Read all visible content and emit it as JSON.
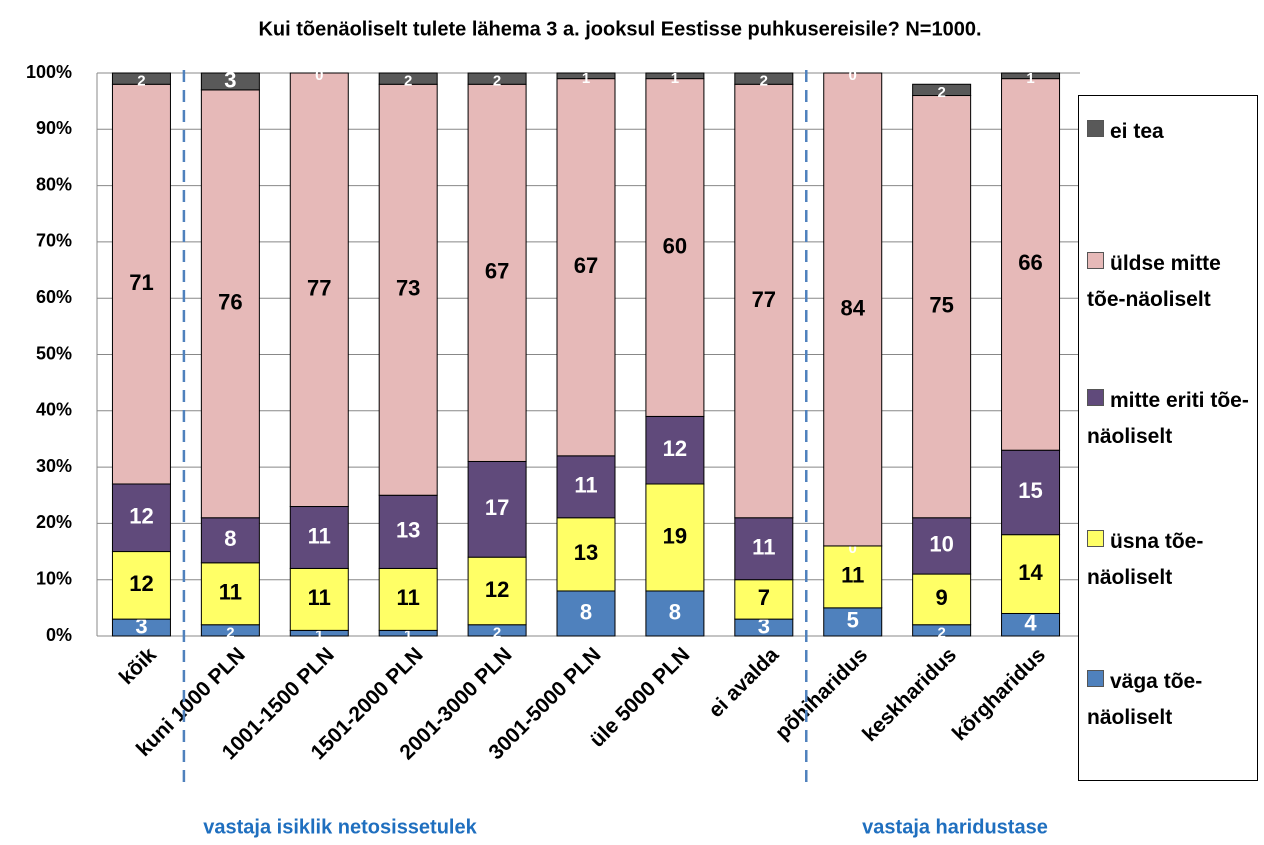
{
  "chart_data": {
    "type": "stacked_bar",
    "title": "Kui tõenäoliselt tulete lähema 3 a. jooksul Eestisse puhkusereisile? N=1000.",
    "categories": [
      "kõik",
      "kuni 1000 PLN",
      "1001-1500 PLN",
      "1501-2000 PLN",
      "2001-3000 PLN",
      "3001-5000 PLN",
      "üle 5000 PLN",
      "ei avalda",
      "põhiharidus",
      "keskharidus",
      "kõrgharidus"
    ],
    "series": [
      {
        "name": "väga tõe-näoliselt",
        "color": "#4f81bd",
        "label_color": "#ffffff",
        "values": [
          3,
          2,
          1,
          1,
          2,
          8,
          8,
          3,
          5,
          2,
          4
        ]
      },
      {
        "name": "üsna tõe-näoliselt",
        "color": "#ffff66",
        "label_color": "#000000",
        "values": [
          12,
          11,
          11,
          11,
          12,
          13,
          19,
          7,
          11,
          9,
          14
        ]
      },
      {
        "name": "mitte eriti tõe-näoliselt",
        "color": "#604a7b",
        "label_color": "#ffffff",
        "values": [
          12,
          8,
          11,
          13,
          17,
          11,
          12,
          11,
          0,
          10,
          15
        ]
      },
      {
        "name": "üldse mitte tõe-näoliselt",
        "color": "#e6b9b8",
        "label_color": "#000000",
        "values": [
          71,
          76,
          77,
          73,
          67,
          67,
          60,
          77,
          84,
          75,
          66
        ]
      },
      {
        "name": "ei tea",
        "color": "#595959",
        "label_color": "#ffffff",
        "values": [
          2,
          3,
          0,
          2,
          2,
          1,
          1,
          2,
          0,
          2,
          1
        ]
      }
    ],
    "ylim": [
      0,
      100
    ],
    "yticks": [
      {
        "value": 0,
        "label": "0%"
      },
      {
        "value": 10,
        "label": "10%"
      },
      {
        "value": 20,
        "label": "20%"
      },
      {
        "value": 30,
        "label": "30%"
      },
      {
        "value": 40,
        "label": "40%"
      },
      {
        "value": 50,
        "label": "50%"
      },
      {
        "value": 60,
        "label": "60%"
      },
      {
        "value": 70,
        "label": "70%"
      },
      {
        "value": 80,
        "label": "80%"
      },
      {
        "value": 90,
        "label": "90%"
      },
      {
        "value": 100,
        "label": "100%"
      }
    ],
    "grid": true,
    "legend": "right",
    "annotations": [
      "vastaja isiklik netosissetulek",
      "vastaja haridustase"
    ]
  }
}
